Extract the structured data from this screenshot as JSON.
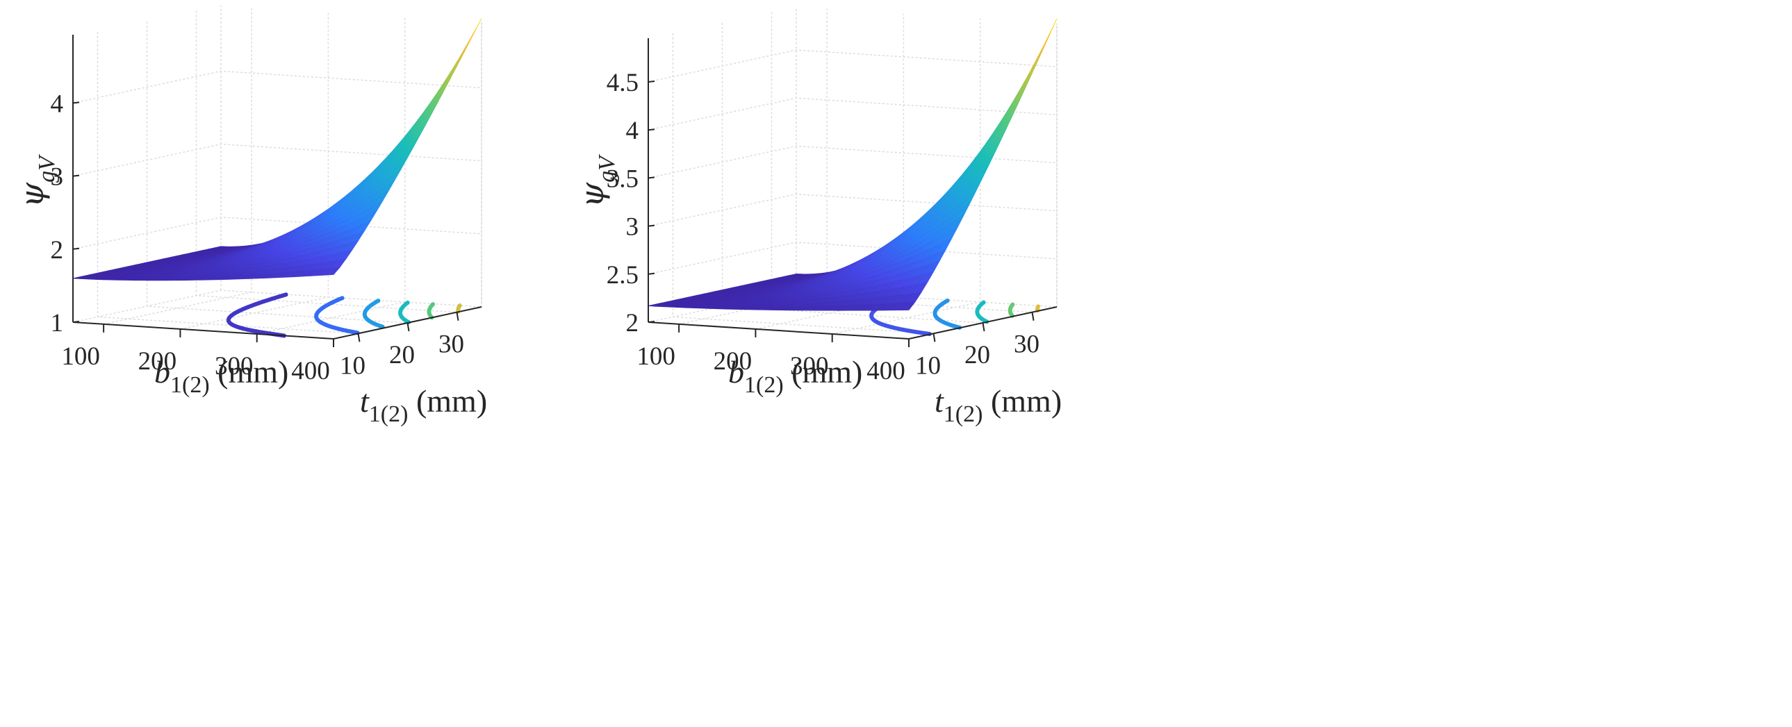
{
  "chart_data": [
    {
      "type": "surface",
      "panel": "left",
      "xlabel_main": "b",
      "xlabel_sub": "1(2)",
      "xlabel_unit": " (mm)",
      "ylabel_main": "t",
      "ylabel_sub": "1(2)",
      "ylabel_unit": " (mm)",
      "zlabel_main": "ψ",
      "zlabel_sub": "gV",
      "xlim": [
        60,
        400
      ],
      "ylim": [
        5,
        35
      ],
      "zlim": [
        1,
        4.9
      ],
      "x_ticks": [
        100,
        200,
        300,
        400
      ],
      "x_tick_labels": [
        "100",
        "200",
        "300",
        "400"
      ],
      "y_ticks": [
        10,
        20,
        30
      ],
      "y_tick_labels": [
        "10",
        "20",
        "30"
      ],
      "z_ticks": [
        1,
        2,
        3,
        4
      ],
      "z_tick_labels": [
        "1",
        "2",
        "3",
        "4"
      ],
      "grid": true,
      "colormap": "parula",
      "surface_corners": {
        "b_min_t_min": 1.6,
        "b_max_t_min": 1.88,
        "b_min_t_max": 1.6,
        "b_max_t_max": 4.95
      },
      "contour_levels": [
        1.8,
        2.3,
        2.8,
        3.3,
        3.8,
        4.4
      ]
    },
    {
      "type": "surface",
      "panel": "right",
      "xlabel_main": "b",
      "xlabel_sub": "1(2)",
      "xlabel_unit": " (mm)",
      "ylabel_main": "t",
      "ylabel_sub": "1(2)",
      "ylabel_unit": " (mm)",
      "zlabel_main": "ψ",
      "zlabel_sub": "gV",
      "xlim": [
        60,
        400
      ],
      "ylim": [
        5,
        35
      ],
      "zlim": [
        2,
        4.95
      ],
      "x_ticks": [
        100,
        200,
        300,
        400
      ],
      "x_tick_labels": [
        "100",
        "200",
        "300",
        "400"
      ],
      "y_ticks": [
        10,
        20,
        30
      ],
      "y_tick_labels": [
        "10",
        "20",
        "30"
      ],
      "z_ticks": [
        2,
        2.5,
        3,
        3.5,
        4,
        4.5
      ],
      "z_tick_labels": [
        "2",
        "2.5",
        "3",
        "3.5",
        "4",
        "4.5"
      ],
      "grid": true,
      "colormap": "parula",
      "surface_corners": {
        "b_min_t_min": 2.17,
        "b_max_t_min": 2.3,
        "b_min_t_max": 2.17,
        "b_max_t_max": 5.0
      },
      "contour_levels": [
        2.6,
        3.1,
        3.6,
        4.1,
        4.6
      ]
    }
  ]
}
